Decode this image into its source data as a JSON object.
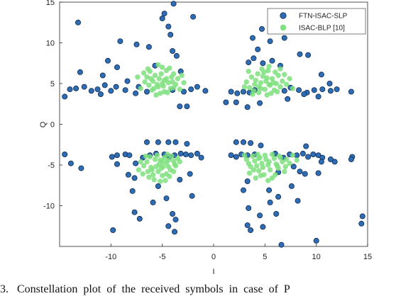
{
  "chart_data": {
    "type": "scatter",
    "xlabel": "I",
    "ylabel": "Q",
    "xlim": [
      -15,
      15
    ],
    "ylim": [
      -15,
      15
    ],
    "xticks": [
      "-10",
      "-5",
      "0",
      "5",
      "10",
      "15"
    ],
    "yticks": [
      "15",
      "10",
      "5",
      "0",
      "-5",
      "-10"
    ],
    "legend_position": "top-right",
    "series": [
      {
        "name": "FTN-ISAC-SLP",
        "color": "#2e6db4",
        "points": [
          [
            -13.2,
            12.5
          ],
          [
            -9.1,
            10.2
          ],
          [
            -5,
            13
          ],
          [
            -4.8,
            13.6
          ],
          [
            -3.9,
            14.8
          ],
          [
            -4.4,
            12
          ],
          [
            -4.2,
            11
          ],
          [
            -2,
            13.2
          ],
          [
            -3.2,
            6.5
          ],
          [
            -4,
            9
          ],
          [
            -3.6,
            8.4
          ],
          [
            -6.3,
            9.5
          ],
          [
            -7.5,
            9.8
          ],
          [
            -10.3,
            7.8
          ],
          [
            -9.4,
            7
          ],
          [
            -13,
            6.4
          ],
          [
            -10.8,
            6
          ],
          [
            -14,
            4.3
          ],
          [
            -13.4,
            4.4
          ],
          [
            -12.6,
            4.6
          ],
          [
            -11.9,
            4.1
          ],
          [
            -11.3,
            4.3
          ],
          [
            -10.6,
            4.8
          ],
          [
            -10,
            4.1
          ],
          [
            -9.5,
            4.6
          ],
          [
            -8.6,
            4.2
          ],
          [
            -7.6,
            3.8
          ],
          [
            -7.3,
            4.6
          ],
          [
            -14.5,
            3.4
          ],
          [
            -11,
            3.7
          ],
          [
            -8.4,
            5.3
          ],
          [
            -2.2,
            4.3
          ],
          [
            -1.6,
            4.6
          ],
          [
            -0.8,
            4.1
          ],
          [
            -3.3,
            2.2
          ],
          [
            -2.6,
            2.2
          ],
          [
            -2.9,
            4
          ],
          [
            -4,
            4.2
          ],
          [
            -6.5,
            4
          ],
          [
            -5.7,
            7.2
          ],
          [
            3.8,
            10.6
          ],
          [
            4.3,
            9.2
          ],
          [
            5.5,
            10.2
          ],
          [
            6.9,
            10.6
          ],
          [
            3.9,
            8.1
          ],
          [
            3.4,
            7.6
          ],
          [
            4.8,
            7.5
          ],
          [
            6.5,
            7.2
          ],
          [
            8.4,
            8.6
          ],
          [
            9.2,
            8.5
          ],
          [
            10.5,
            6.1
          ],
          [
            11.3,
            5
          ],
          [
            9.8,
            4.2
          ],
          [
            10.6,
            4.3
          ],
          [
            11.4,
            4.1
          ],
          [
            12,
            4.3
          ],
          [
            13.4,
            4
          ],
          [
            9.1,
            3.9
          ],
          [
            8.3,
            4.2
          ],
          [
            7.5,
            4.5
          ],
          [
            6.9,
            4.1
          ],
          [
            1.7,
            4
          ],
          [
            2.3,
            3.8
          ],
          [
            2.9,
            4
          ],
          [
            3.5,
            3.9
          ],
          [
            4,
            4.2
          ],
          [
            1.2,
            2.7
          ],
          [
            2.2,
            2.7
          ],
          [
            3.3,
            2.1
          ],
          [
            7.2,
            3.1
          ],
          [
            4.5,
            2.6
          ],
          [
            8.8,
            3.7
          ],
          [
            10.2,
            3.4
          ],
          [
            5.7,
            7.8
          ],
          [
            4.7,
            11.7
          ],
          [
            -14.5,
            -3.7
          ],
          [
            -13.9,
            -4.8
          ],
          [
            -12.9,
            -5.4
          ],
          [
            -9.9,
            -4
          ],
          [
            -9.4,
            -3.8
          ],
          [
            -8.6,
            -3.7
          ],
          [
            -8.2,
            -3.8
          ],
          [
            -7.6,
            -4.8
          ],
          [
            -6.9,
            -4.1
          ],
          [
            -6.2,
            -3.8
          ],
          [
            -5.6,
            -3.6
          ],
          [
            -4.8,
            -3.7
          ],
          [
            -4.3,
            -4
          ],
          [
            -3.8,
            -3.8
          ],
          [
            -3.2,
            -3.6
          ],
          [
            -2.7,
            -3.7
          ],
          [
            -2.2,
            -3.8
          ],
          [
            -1.6,
            -3.6
          ],
          [
            -1.2,
            -4.1
          ],
          [
            -6.5,
            -2.2
          ],
          [
            -5.4,
            -2.2
          ],
          [
            -4.4,
            -2.2
          ],
          [
            -3.7,
            -2.2
          ],
          [
            -2.6,
            -2.4
          ],
          [
            -9.4,
            -4.9
          ],
          [
            -8.3,
            -6.2
          ],
          [
            -7.7,
            -6.6
          ],
          [
            -7.9,
            -8.2
          ],
          [
            -5.4,
            -7.6
          ],
          [
            -5.9,
            -9.6
          ],
          [
            -4.6,
            -9.1
          ],
          [
            -4,
            -11
          ],
          [
            -3.7,
            -11.7
          ],
          [
            -2.1,
            -8.8
          ],
          [
            -3.3,
            -6.8
          ],
          [
            -7.2,
            -11.6
          ],
          [
            -7.7,
            -10.8
          ],
          [
            -9.8,
            -13
          ],
          [
            -4.4,
            -12.5
          ],
          [
            -3.8,
            -13.2
          ],
          [
            -2.3,
            -6.1
          ],
          [
            1.7,
            -3.8
          ],
          [
            2.2,
            -4
          ],
          [
            2.7,
            -3.7
          ],
          [
            3.3,
            -3.8
          ],
          [
            4,
            -3.7
          ],
          [
            6,
            -3.6
          ],
          [
            6.8,
            -4.1
          ],
          [
            7.4,
            -3.7
          ],
          [
            8.1,
            -3.8
          ],
          [
            8.7,
            -3.6
          ],
          [
            9.2,
            -4
          ],
          [
            9.7,
            -3.7
          ],
          [
            10.2,
            -3.8
          ],
          [
            10.6,
            -4.1
          ],
          [
            11.4,
            -4.3
          ],
          [
            11.8,
            -4.6
          ],
          [
            13.5,
            -4
          ],
          [
            13.4,
            -4.3
          ],
          [
            9,
            -2.7
          ],
          [
            2.2,
            -2.2
          ],
          [
            2.9,
            -2.2
          ],
          [
            3.6,
            -2.3
          ],
          [
            4.6,
            -2.6
          ],
          [
            7.8,
            -5.2
          ],
          [
            8.4,
            -5.8
          ],
          [
            8.9,
            -6.1
          ],
          [
            7.6,
            -7.6
          ],
          [
            8.2,
            -9.4
          ],
          [
            6.3,
            -8.9
          ],
          [
            5.5,
            -9.6
          ],
          [
            6.1,
            -11
          ],
          [
            4.5,
            -11.2
          ],
          [
            4.8,
            -12.6
          ],
          [
            3.6,
            -13
          ],
          [
            3.3,
            -12.4
          ],
          [
            2.9,
            -8.1
          ],
          [
            5.4,
            -8.1
          ],
          [
            10.2,
            -6
          ],
          [
            6.3,
            -5.9
          ],
          [
            14.5,
            -11.3
          ],
          [
            14.4,
            -12.2
          ],
          [
            10,
            -14.3
          ],
          [
            6.6,
            -14.8
          ],
          [
            10.5,
            -4.6
          ],
          [
            3.3,
            -7
          ],
          [
            3.4,
            -10.3
          ]
        ]
      },
      {
        "name": "ISAC-BLP [10]",
        "color": "#7ee07e",
        "points": [
          [
            -6.8,
            6.3
          ],
          [
            -6.5,
            5.8
          ],
          [
            -6.2,
            6.5
          ],
          [
            -5.9,
            5.3
          ],
          [
            -5.7,
            6
          ],
          [
            -5.5,
            4.9
          ],
          [
            -5.3,
            5.6
          ],
          [
            -5.1,
            6.2
          ],
          [
            -4.9,
            4.7
          ],
          [
            -4.8,
            5.4
          ],
          [
            -4.6,
            6.6
          ],
          [
            -4.4,
            5.1
          ],
          [
            -4.2,
            4.4
          ],
          [
            -4.1,
            5.8
          ],
          [
            -3.9,
            6.2
          ],
          [
            -3.7,
            4.9
          ],
          [
            -3.5,
            5.6
          ],
          [
            -3.3,
            4.3
          ],
          [
            -5.2,
            3.8
          ],
          [
            -5.6,
            3.6
          ],
          [
            -6,
            4.2
          ],
          [
            -6.3,
            4.8
          ],
          [
            -6.7,
            5.2
          ],
          [
            -7.4,
            5.8
          ],
          [
            -4.5,
            3.9
          ],
          [
            -3.9,
            4.5
          ],
          [
            -4.8,
            4
          ],
          [
            -5.4,
            4.6
          ],
          [
            -6.1,
            5.6
          ],
          [
            -4,
            5.2
          ],
          [
            -4.6,
            5.6
          ],
          [
            -5,
            5
          ],
          [
            -5.8,
            4.4
          ],
          [
            -6.4,
            6.8
          ],
          [
            -4.3,
            6.9
          ],
          [
            -5,
            7
          ],
          [
            -5.4,
            7.3
          ],
          [
            -3.1,
            6
          ],
          [
            -7.1,
            4.4
          ],
          [
            -2.9,
            5.1
          ],
          [
            3.2,
            5.2
          ],
          [
            3.5,
            4.5
          ],
          [
            3.7,
            5.8
          ],
          [
            3.9,
            4.1
          ],
          [
            4.1,
            5.4
          ],
          [
            4.3,
            6.2
          ],
          [
            4.4,
            4.6
          ],
          [
            4.6,
            5.1
          ],
          [
            4.8,
            5.9
          ],
          [
            5,
            4.3
          ],
          [
            5.1,
            5.3
          ],
          [
            5.3,
            6.6
          ],
          [
            5.5,
            4.8
          ],
          [
            5.7,
            5.6
          ],
          [
            5.9,
            4.2
          ],
          [
            6.1,
            5
          ],
          [
            6.3,
            6
          ],
          [
            6.5,
            4.6
          ],
          [
            6.7,
            5.3
          ],
          [
            6.9,
            6.1
          ],
          [
            7.1,
            4.9
          ],
          [
            3.8,
            3.7
          ],
          [
            4.4,
            3.9
          ],
          [
            5.2,
            3.6
          ],
          [
            5.6,
            3.8
          ],
          [
            6.2,
            4
          ],
          [
            4.7,
            6.8
          ],
          [
            5.4,
            7.1
          ],
          [
            6.5,
            6.8
          ],
          [
            3.4,
            6.5
          ],
          [
            4.6,
            4.4
          ],
          [
            5.2,
            5.7
          ],
          [
            5.8,
            5.1
          ],
          [
            4,
            4.9
          ],
          [
            7.4,
            5.6
          ],
          [
            7.7,
            4.4
          ],
          [
            3,
            4.6
          ],
          [
            4.9,
            6.4
          ],
          [
            6,
            6.4
          ],
          [
            5.4,
            4.9
          ],
          [
            -6.2,
            -4
          ],
          [
            -6.5,
            -4.6
          ],
          [
            -6.8,
            -5.1
          ],
          [
            -6,
            -5.6
          ],
          [
            -5.9,
            -6.2
          ],
          [
            -5.7,
            -4.3
          ],
          [
            -5.5,
            -3.8
          ],
          [
            -5.3,
            -4.9
          ],
          [
            -5.1,
            -5.4
          ],
          [
            -5,
            -6.3
          ],
          [
            -4.8,
            -4.1
          ],
          [
            -4.6,
            -4.7
          ],
          [
            -4.4,
            -5.2
          ],
          [
            -4.3,
            -6.4
          ],
          [
            -4.1,
            -3.9
          ],
          [
            -3.9,
            -4.5
          ],
          [
            -3.7,
            -5.1
          ],
          [
            -3.5,
            -4.2
          ],
          [
            -5.8,
            -6.8
          ],
          [
            -6.3,
            -6.5
          ],
          [
            -6.9,
            -6.1
          ],
          [
            -5.2,
            -7
          ],
          [
            -4.7,
            -6.9
          ],
          [
            -7.3,
            -5.6
          ],
          [
            -7.1,
            -4.6
          ],
          [
            -5.4,
            -5.8
          ],
          [
            -4.9,
            -5.2
          ],
          [
            -4.5,
            -3.7
          ],
          [
            -3.8,
            -4.9
          ],
          [
            -4.2,
            -5.6
          ],
          [
            -6.6,
            -3.9
          ],
          [
            -5.6,
            -5.2
          ],
          [
            -4.4,
            -4.4
          ],
          [
            -3.3,
            -4.6
          ],
          [
            -6.1,
            -5.3
          ],
          [
            -5,
            -4.6
          ],
          [
            -3.9,
            -5.8
          ],
          [
            -6.4,
            -5.8
          ],
          [
            -4.6,
            -6.1
          ],
          [
            -5.2,
            -4.4
          ],
          [
            3,
            -3.8
          ],
          [
            3.2,
            -4.3
          ],
          [
            3.4,
            -4.8
          ],
          [
            3.6,
            -5.2
          ],
          [
            3.8,
            -3.9
          ],
          [
            4,
            -4.5
          ],
          [
            4.2,
            -5.1
          ],
          [
            4.4,
            -5.7
          ],
          [
            4.5,
            -4.1
          ],
          [
            4.7,
            -4.8
          ],
          [
            4.9,
            -6.2
          ],
          [
            5.1,
            -4.3
          ],
          [
            5.3,
            -5
          ],
          [
            5.5,
            -5.6
          ],
          [
            5.7,
            -6.6
          ],
          [
            5.9,
            -4.2
          ],
          [
            6.1,
            -4.9
          ],
          [
            6.3,
            -5.4
          ],
          [
            6.5,
            -4.1
          ],
          [
            6.7,
            -4.6
          ],
          [
            6.9,
            -5.8
          ],
          [
            7.1,
            -4.3
          ],
          [
            7.4,
            -4.8
          ],
          [
            7.7,
            -3.8
          ],
          [
            8.1,
            -4.4
          ],
          [
            4.1,
            -6.6
          ],
          [
            4.6,
            -6.3
          ],
          [
            5.3,
            -6.9
          ],
          [
            4.3,
            -3.7
          ],
          [
            5,
            -3.8
          ],
          [
            5.7,
            -3.7
          ],
          [
            6.4,
            -3.9
          ],
          [
            3.5,
            -6
          ],
          [
            6,
            -6.2
          ],
          [
            4.8,
            -5.3
          ],
          [
            5.4,
            -4.6
          ],
          [
            6.2,
            -5.1
          ],
          [
            3.9,
            -5.6
          ],
          [
            7,
            -5.2
          ],
          [
            4.4,
            -4.2
          ]
        ]
      }
    ]
  },
  "caption": "3.   Constellation  plot  of  the  received  symbols  in  case  of  P"
}
